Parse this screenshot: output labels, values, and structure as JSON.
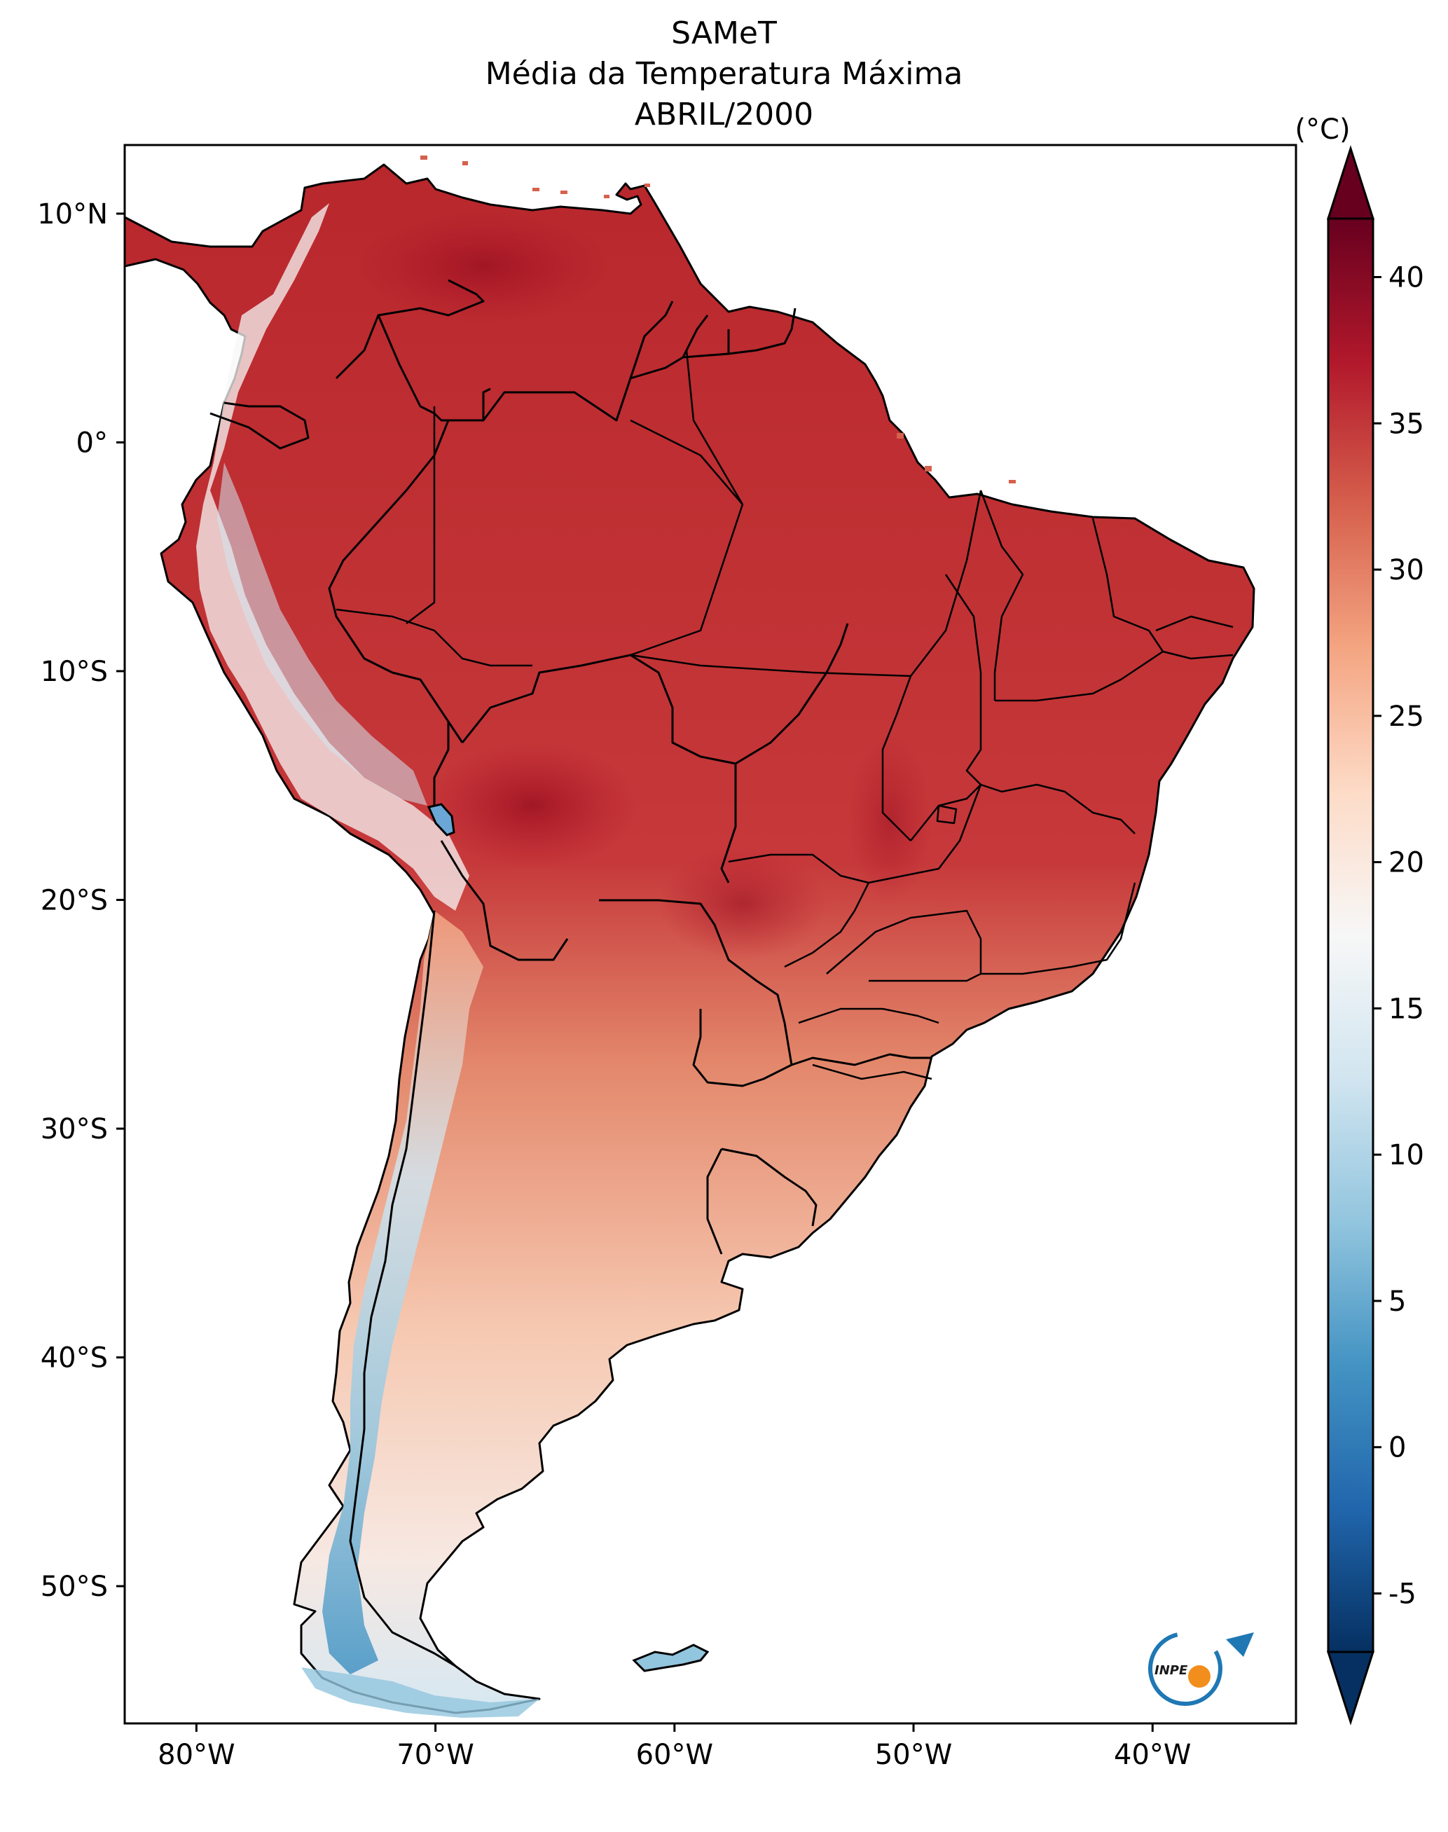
{
  "title": {
    "line1": "SAMeT",
    "line2": "Média da Temperatura Máxima",
    "line3": "ABRIL/2000"
  },
  "map": {
    "lon_ticks": [
      "80°W",
      "70°W",
      "60°W",
      "50°W",
      "40°W"
    ],
    "lat_ticks": [
      "10°N",
      "0°",
      "10°S",
      "20°S",
      "30°S",
      "40°S",
      "50°S"
    ],
    "lon_range": [
      -83,
      -34
    ],
    "lat_range": [
      -56,
      13
    ]
  },
  "colorbar": {
    "unit": "(°C)",
    "ticks": [
      "40",
      "35",
      "30",
      "25",
      "20",
      "15",
      "10",
      "5",
      "0",
      "-5"
    ],
    "range": [
      -7,
      42
    ],
    "colormap": "RdBu_r",
    "colors": [
      "#053061",
      "#2166ac",
      "#4393c3",
      "#92c5de",
      "#d1e5f0",
      "#f7f7f7",
      "#fddbc7",
      "#f4a582",
      "#d6604d",
      "#b2182b",
      "#67001f"
    ]
  },
  "logo": {
    "text": "INPE"
  }
}
